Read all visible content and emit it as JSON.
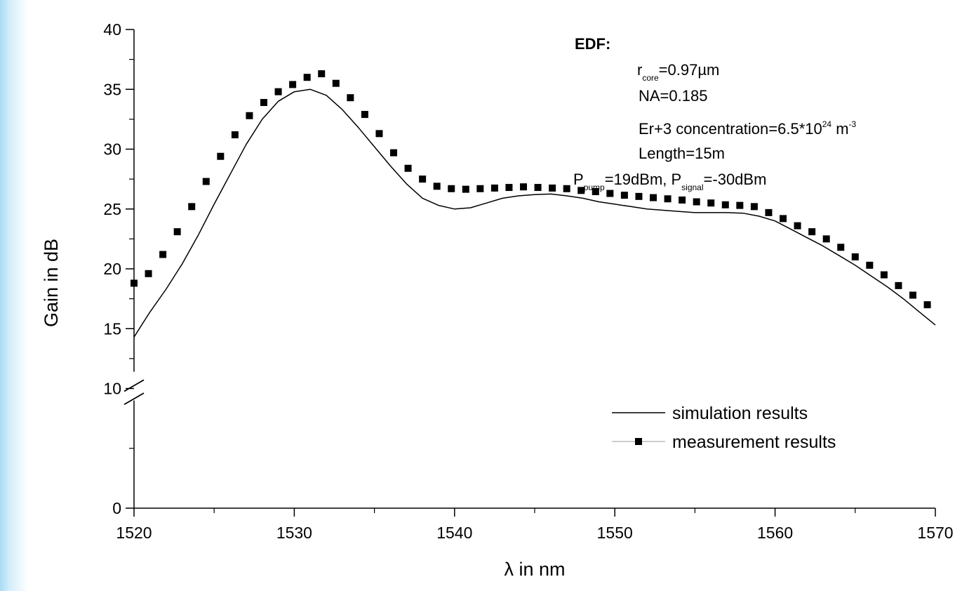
{
  "chart_data": {
    "type": "line",
    "xlabel": "λ in nm",
    "ylabel": "Gain in dB",
    "xlim": [
      1520,
      1570
    ],
    "ylim": [
      0,
      40
    ],
    "x_ticks": [
      "1520",
      "1530",
      "1540",
      "1550",
      "1560",
      "1570"
    ],
    "y_ticks": [
      "0",
      "10",
      "15",
      "20",
      "25",
      "30",
      "35",
      "40"
    ],
    "y_axis_break": [
      1,
      10
    ],
    "legend_position": "bottom-right",
    "series": [
      {
        "name": "simulation results",
        "style": "line",
        "x": [
          1520,
          1521,
          1522,
          1523,
          1524,
          1525,
          1526,
          1527,
          1528,
          1529,
          1530,
          1531,
          1532,
          1533,
          1534,
          1535,
          1536,
          1537,
          1538,
          1539,
          1540,
          1541,
          1542,
          1543,
          1544,
          1545,
          1546,
          1547,
          1548,
          1549,
          1550,
          1551,
          1552,
          1553,
          1554,
          1555,
          1556,
          1557,
          1558,
          1559,
          1560,
          1561,
          1562,
          1563,
          1564,
          1565,
          1566,
          1567,
          1568,
          1569,
          1570
        ],
        "values": [
          14.3,
          16.4,
          18.3,
          20.4,
          22.8,
          25.4,
          27.9,
          30.4,
          32.5,
          34.0,
          34.8,
          35.0,
          34.5,
          33.3,
          31.8,
          30.2,
          28.6,
          27.1,
          25.9,
          25.3,
          25.0,
          25.1,
          25.5,
          25.9,
          26.1,
          26.2,
          26.25,
          26.1,
          25.9,
          25.6,
          25.4,
          25.2,
          25.0,
          24.9,
          24.8,
          24.7,
          24.7,
          24.7,
          24.65,
          24.4,
          24.0,
          23.3,
          22.6,
          21.9,
          21.1,
          20.3,
          19.4,
          18.5,
          17.5,
          16.4,
          15.3
        ]
      },
      {
        "name": "measurement results",
        "style": "square-markers",
        "x": [
          1520,
          1520.9,
          1521.8,
          1522.7,
          1523.6,
          1524.5,
          1525.4,
          1526.3,
          1527.2,
          1528.1,
          1529.0,
          1529.9,
          1530.8,
          1531.7,
          1532.6,
          1533.5,
          1534.4,
          1535.3,
          1536.2,
          1537.1,
          1538.0,
          1538.9,
          1539.8,
          1540.7,
          1541.6,
          1542.5,
          1543.4,
          1544.3,
          1545.2,
          1546.1,
          1547.0,
          1547.9,
          1548.8,
          1549.7,
          1550.6,
          1551.5,
          1552.4,
          1553.3,
          1554.2,
          1555.1,
          1556.0,
          1556.9,
          1557.8,
          1558.7,
          1559.6,
          1560.5,
          1561.4,
          1562.3,
          1563.2,
          1564.1,
          1565.0,
          1565.9,
          1566.8,
          1567.7,
          1568.6,
          1569.5
        ],
        "values": [
          18.8,
          19.6,
          21.2,
          23.1,
          25.2,
          27.3,
          29.4,
          31.2,
          32.8,
          33.9,
          34.8,
          35.4,
          36.0,
          36.3,
          35.5,
          34.3,
          32.9,
          31.3,
          29.7,
          28.4,
          27.5,
          26.9,
          26.7,
          26.65,
          26.7,
          26.75,
          26.8,
          26.85,
          26.8,
          26.75,
          26.7,
          26.55,
          26.45,
          26.3,
          26.15,
          26.05,
          25.95,
          25.85,
          25.75,
          25.6,
          25.5,
          25.35,
          25.3,
          25.2,
          24.7,
          24.2,
          23.6,
          23.1,
          22.5,
          21.8,
          21.0,
          20.3,
          19.5,
          18.6,
          17.8,
          17.0
        ]
      }
    ],
    "annotation": {
      "heading": "EDF:",
      "r_core": {
        "base": "r",
        "sub": "core",
        "rest": "=0.97µm"
      },
      "na": "NA=0.185",
      "concentration": {
        "pre": "Er+3 concentration=6.5*10",
        "sup1": "24",
        "mid": " m",
        "sup2": "-3"
      },
      "length": "Length=15m",
      "power": {
        "p1": "P",
        "sub1": "pump",
        "mid": "=19dBm, P",
        "sub2": "signal",
        "rest": "=-30dBm"
      }
    }
  }
}
